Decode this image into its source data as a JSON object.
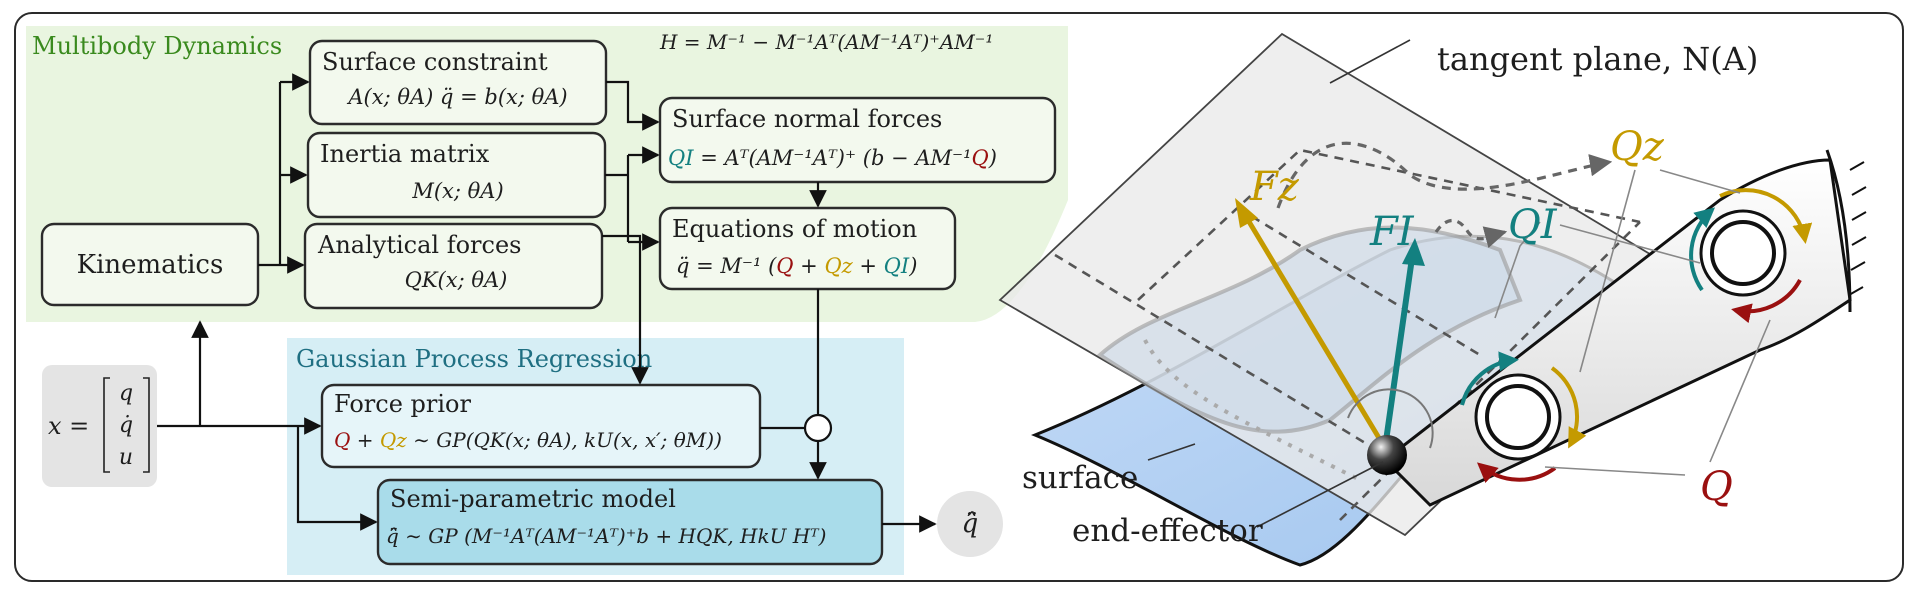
{
  "sections": {
    "multibody": "Multibody Dynamics",
    "gpr": "Gaussian Process Regression"
  },
  "equations": {
    "H": "H = M⁻¹ − M⁻¹Aᵀ(AM⁻¹Aᵀ)⁺AM⁻¹"
  },
  "blocks": {
    "kinematics": {
      "title": "Kinematics"
    },
    "surface_constraint": {
      "title": "Surface constraint",
      "eq": "A(x; θA) q̈ = b(x; θA)"
    },
    "inertia_matrix": {
      "title": "Inertia matrix",
      "eq": "M(x; θA)"
    },
    "analytical_forces": {
      "title": "Analytical forces",
      "eq": "QK(x; θA)"
    },
    "surface_normal_forces": {
      "title": "Surface normal forces",
      "eq_lhs": "QI",
      "eq_mid": " = Aᵀ(AM⁻¹Aᵀ)⁺ (b − AM⁻¹",
      "eq_q": "Q",
      "eq_end": ")"
    },
    "equations_of_motion": {
      "title": "Equations of motion",
      "eq_pre": "q̈ = M⁻¹ (",
      "eq_q": "Q",
      "eq_plus1": " + ",
      "eq_qz": "Qz",
      "eq_plus2": " + ",
      "eq_qi": "QI",
      "eq_end": ")"
    },
    "input": {
      "eq": "x =",
      "vec": [
        "q",
        "q̇",
        "u"
      ]
    },
    "force_prior": {
      "title": "Force prior",
      "eq_q": "Q",
      "eq_plus": " + ",
      "eq_qz": "Qz",
      "eq_rest": " ∼ GP(QK(x; θA), kU(x, x′; θM))"
    },
    "semi_parametric": {
      "title": "Semi-parametric model",
      "eq": "q̈̂ ∼ GP (M⁻¹Aᵀ(AM⁻¹Aᵀ)⁺b + HQK, HkU Hᵀ)"
    },
    "output": {
      "eq": "q̈̂"
    }
  },
  "illustration": {
    "tangent_plane": "tangent plane, N(A)",
    "surface": "surface",
    "end_effector": "end-effector",
    "Fz": "Fz",
    "FI": "FI",
    "Qz": "Qz",
    "QI": "QI",
    "Q": "Q"
  },
  "colors": {
    "green_region": "#e9f5e0",
    "blue_region": "#d6eef5",
    "green_text": "#3a8a1e",
    "teal_text": "#1f6f82",
    "red": "#9a1010",
    "gold": "#c49a00",
    "teal": "#138080"
  }
}
